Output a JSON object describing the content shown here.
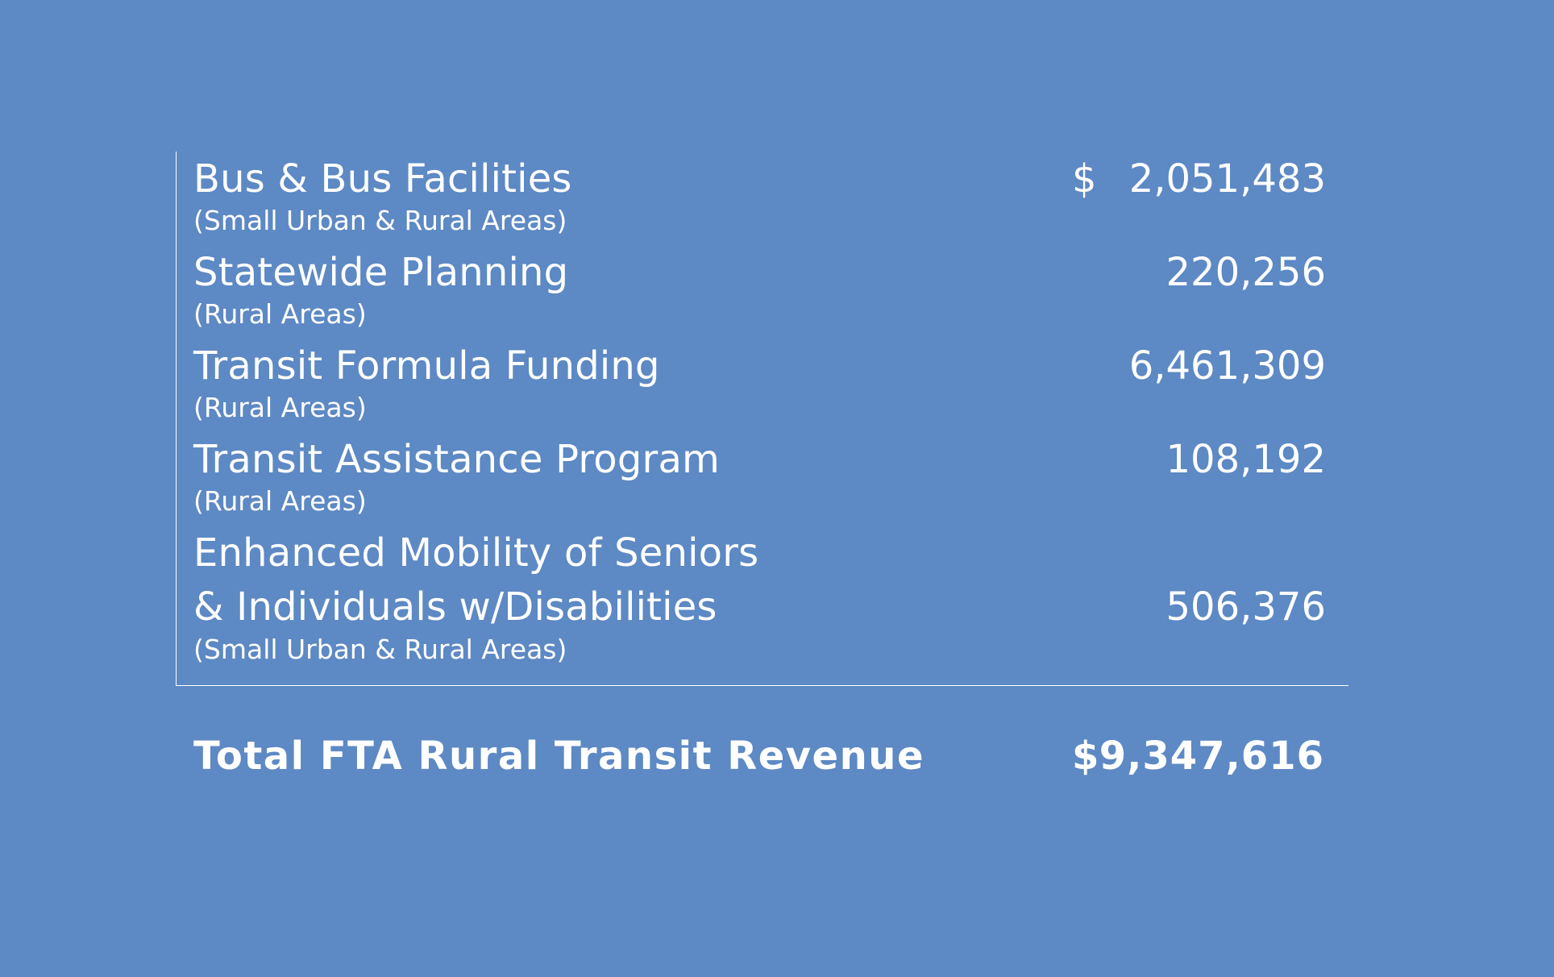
{
  "rows": [
    {
      "name": "Bus & Bus Facilities",
      "sub": "(Small Urban & Rural Areas)",
      "currency": "$",
      "amount": "2,051,483"
    },
    {
      "name": "Statewide Planning",
      "sub": "(Rural Areas)",
      "amount": "220,256"
    },
    {
      "name": "Transit Formula Funding",
      "sub": "(Rural Areas)",
      "amount": "6,461,309"
    },
    {
      "name": "Transit Assistance Program",
      "sub": "(Rural Areas)",
      "amount": "108,192"
    },
    {
      "name_line1": "Enhanced Mobility of Seniors",
      "name_line2": "& Individuals w/Disabilities",
      "sub": "(Small Urban & Rural Areas)",
      "amount": "506,376"
    }
  ],
  "total": {
    "label": "Total FTA Rural Transit Revenue",
    "currency": "$",
    "amount": "9,347,616"
  }
}
